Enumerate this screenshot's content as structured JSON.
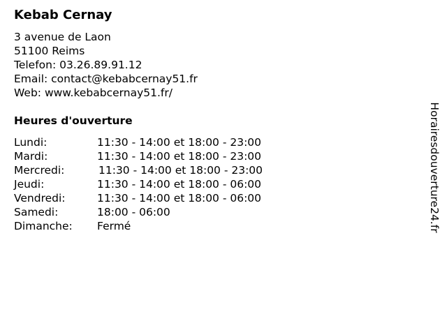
{
  "title": "Kebab Cernay",
  "address": {
    "street": "3 avenue de Laon",
    "city": "51100 Reims",
    "phone": "Telefon: 03.26.89.91.12",
    "email": "Email: contact@kebabcernay51.fr",
    "web": "Web: www.kebabcernay51.fr/"
  },
  "hours_title": "Heures d'ouverture",
  "hours": [
    {
      "day": "Lundi:",
      "time": "11:30 - 14:00 et 18:00 - 23:00"
    },
    {
      "day": "Mardi:",
      "time": "11:30 - 14:00 et 18:00 - 23:00"
    },
    {
      "day": "Mercredi:",
      "time": "11:30 - 14:00 et 18:00 - 23:00"
    },
    {
      "day": "Jeudi:",
      "time": "11:30 - 14:00 et 18:00 - 06:00"
    },
    {
      "day": "Vendredi:",
      "time": "11:30 - 14:00 et 18:00 - 06:00"
    },
    {
      "day": "Samedi:",
      "time": "18:00 - 06:00"
    },
    {
      "day": "Dimanche:",
      "time": "Fermé"
    }
  ],
  "side_label": "Horairesdouverture24.fr"
}
